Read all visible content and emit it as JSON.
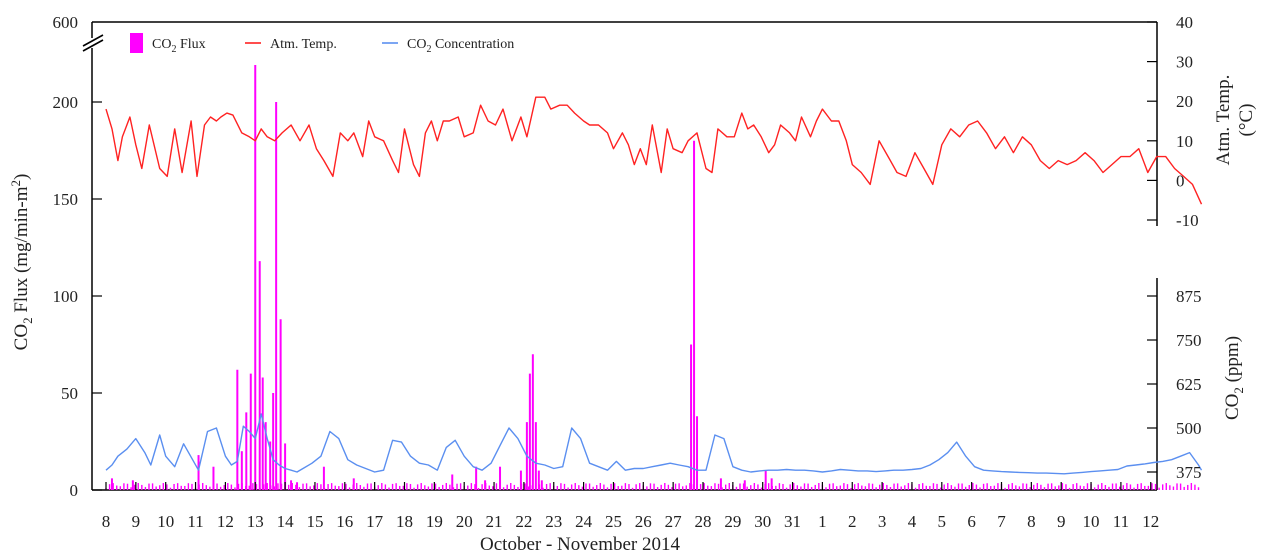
{
  "chart_data": {
    "type": "line",
    "title": "",
    "xlabel": "October - November 2014",
    "x_tick_labels": [
      "8",
      "9",
      "10",
      "11",
      "12",
      "13",
      "14",
      "15",
      "16",
      "17",
      "18",
      "19",
      "20",
      "21",
      "22",
      "23",
      "24",
      "25",
      "26",
      "27",
      "28",
      "29",
      "30",
      "31",
      "1",
      "2",
      "3",
      "4",
      "5",
      "6",
      "7",
      "8",
      "9",
      "10",
      "11",
      "12"
    ],
    "y_left": {
      "label_main": "CO",
      "label_sub": "2",
      "label_rest": " Flux (mg/min-m",
      "label_sup": "2",
      "label_end": ")",
      "range": [
        0,
        200
      ],
      "broken_top_label": "600",
      "ticks": [
        0,
        50,
        100,
        150,
        200
      ]
    },
    "y_right_temp": {
      "label_line1": "Atm. Temp.",
      "label_line2": "(°C)",
      "range": [
        -10,
        40
      ],
      "ticks": [
        -10,
        0,
        10,
        20,
        30,
        40
      ]
    },
    "y_right_co2": {
      "label_main": "CO",
      "label_sub": "2",
      "label_rest": " (ppm)",
      "range": [
        325,
        875
      ],
      "ticks": [
        375,
        500,
        625,
        750,
        875
      ]
    },
    "legend": [
      {
        "main": "CO",
        "sub": "2",
        "rest": " Flux",
        "color": "#ff00ff"
      },
      {
        "main": "Atm. Temp.",
        "sub": "",
        "rest": "",
        "color": "#ff2222"
      },
      {
        "main": "CO",
        "sub": "2",
        "rest": " Concentration",
        "color": "#5b8ff0"
      }
    ],
    "series": [
      {
        "name": "Atm. Temp.",
        "axis": "temp",
        "color": "#ff2222",
        "day": [
          0.0,
          0.2,
          0.4,
          0.55,
          0.8,
          1.0,
          1.2,
          1.45,
          1.8,
          2.05,
          2.3,
          2.55,
          2.85,
          3.05,
          3.3,
          3.5,
          3.7,
          3.85,
          4.05,
          4.25,
          4.55,
          4.8,
          5.0,
          5.2,
          5.4,
          5.65,
          5.9,
          6.2,
          6.5,
          6.8,
          7.05,
          7.3,
          7.6,
          7.85,
          8.1,
          8.3,
          8.6,
          8.8,
          9.0,
          9.3,
          9.6,
          9.8,
          10.0,
          10.3,
          10.5,
          10.7,
          10.9,
          11.1,
          11.3,
          11.5,
          11.8,
          12.0,
          12.3,
          12.55,
          12.8,
          13.05,
          13.3,
          13.6,
          13.9,
          14.1,
          14.4,
          14.7,
          14.9,
          15.2,
          15.45,
          15.7,
          16.0,
          16.2,
          16.5,
          16.8,
          17.0,
          17.3,
          17.5,
          17.7,
          17.9,
          18.1,
          18.3,
          18.6,
          18.8,
          19.0,
          19.3,
          19.5,
          19.8,
          20.1,
          20.3,
          20.5,
          20.8,
          21.05,
          21.3,
          21.5,
          21.7,
          21.95,
          22.2,
          22.4,
          22.6,
          22.9,
          23.1,
          23.3,
          23.6,
          23.8,
          24.0,
          24.3,
          24.55,
          24.8,
          25.0,
          25.3,
          25.6,
          25.9,
          26.2,
          26.5,
          26.8,
          27.1,
          27.4,
          27.7,
          28.0,
          28.3,
          28.6,
          28.9,
          29.2,
          29.5,
          29.8,
          30.1,
          30.4,
          30.7,
          31.0,
          31.3,
          31.6,
          31.9,
          32.2,
          32.5,
          32.8,
          33.1,
          33.4,
          33.7,
          34.0,
          34.3,
          34.6,
          34.9,
          35.2,
          35.5,
          35.8,
          36.1,
          36.4,
          36.7
        ],
        "values": [
          18.0,
          13.0,
          5.0,
          11.0,
          16.0,
          9.0,
          3.0,
          14.0,
          3.0,
          1.0,
          13.0,
          2.0,
          15.0,
          1.0,
          14.0,
          16.0,
          15.0,
          16.0,
          17.0,
          16.5,
          12.0,
          11.0,
          10.0,
          13.0,
          11.0,
          10.0,
          12.0,
          14.0,
          10.0,
          14.0,
          8.0,
          5.0,
          1.0,
          12.0,
          10.0,
          12.0,
          6.0,
          15.0,
          11.0,
          10.0,
          5.0,
          2.0,
          13.0,
          4.0,
          1.0,
          12.0,
          15.0,
          10.0,
          15.0,
          15.0,
          16.0,
          11.0,
          12.0,
          19.0,
          15.0,
          14.0,
          18.0,
          10.0,
          16.0,
          11.0,
          21.0,
          21.0,
          18.0,
          19.0,
          19.0,
          17.0,
          15.0,
          14.0,
          14.0,
          12.0,
          8.0,
          12.0,
          9.0,
          4.0,
          8.0,
          4.0,
          14.0,
          2.0,
          13.0,
          8.0,
          7.0,
          10.0,
          12.0,
          3.0,
          2.0,
          13.0,
          11.0,
          11.0,
          17.0,
          13.0,
          14.0,
          11.0,
          7.0,
          9.0,
          14.0,
          12.0,
          10.0,
          16.0,
          11.0,
          15.0,
          18.0,
          15.0,
          15.0,
          10.0,
          4.0,
          2.0,
          -1.0,
          10.0,
          6.0,
          2.0,
          1.0,
          7.0,
          3.0,
          -1.0,
          9.0,
          13.0,
          11.0,
          14.0,
          15.0,
          12.0,
          8.0,
          11.0,
          7.0,
          11.0,
          9.0,
          5.0,
          3.0,
          5.0,
          4.0,
          5.0,
          7.0,
          5.0,
          2.0,
          4.0,
          6.0,
          6.0,
          8.0,
          2.0,
          6.0,
          6.0,
          3.0,
          1.0,
          -1.0,
          -6.0
        ]
      },
      {
        "name": "CO2 Concentration",
        "axis": "co2",
        "color": "#5b8ff0",
        "day": [
          0.0,
          0.2,
          0.4,
          0.7,
          1.0,
          1.3,
          1.5,
          1.8,
          2.0,
          2.3,
          2.6,
          2.9,
          3.1,
          3.4,
          3.7,
          4.0,
          4.2,
          4.4,
          4.6,
          4.8,
          5.0,
          5.2,
          5.4,
          5.6,
          5.8,
          6.0,
          6.2,
          6.4,
          6.6,
          6.9,
          7.2,
          7.5,
          7.8,
          8.1,
          8.4,
          8.7,
          9.0,
          9.3,
          9.6,
          9.9,
          10.2,
          10.5,
          10.8,
          11.1,
          11.4,
          11.7,
          12.0,
          12.3,
          12.6,
          12.9,
          13.2,
          13.5,
          13.8,
          14.1,
          14.4,
          14.7,
          15.0,
          15.3,
          15.6,
          15.9,
          16.2,
          16.5,
          16.8,
          17.1,
          17.4,
          17.7,
          18.0,
          18.3,
          18.6,
          18.9,
          19.2,
          19.5,
          19.8,
          20.1,
          20.4,
          20.7,
          21.0,
          21.3,
          21.6,
          21.9,
          22.2,
          22.5,
          22.8,
          23.1,
          23.4,
          23.7,
          24.0,
          24.3,
          24.6,
          24.9,
          25.2,
          25.5,
          25.8,
          26.1,
          26.4,
          26.7,
          27.0,
          27.3,
          27.6,
          27.9,
          28.2,
          28.5,
          28.8,
          29.1,
          29.4,
          29.7,
          30.0,
          30.3,
          30.6,
          30.9,
          31.2,
          31.5,
          31.8,
          32.1,
          32.4,
          32.7,
          33.0,
          33.3,
          33.6,
          33.9,
          34.2,
          34.5,
          34.8,
          35.1,
          35.4,
          35.7,
          36.0,
          36.3,
          36.6,
          36.7
        ],
        "values": [
          380,
          395,
          420,
          440,
          470,
          430,
          395,
          480,
          420,
          390,
          455,
          410,
          380,
          490,
          500,
          420,
          395,
          405,
          505,
          490,
          470,
          540,
          470,
          410,
          395,
          385,
          380,
          375,
          385,
          400,
          420,
          490,
          470,
          410,
          395,
          385,
          375,
          380,
          465,
          460,
          420,
          400,
          395,
          380,
          445,
          465,
          420,
          390,
          380,
          400,
          450,
          500,
          470,
          420,
          400,
          395,
          385,
          390,
          500,
          470,
          400,
          390,
          380,
          405,
          380,
          385,
          385,
          390,
          395,
          400,
          395,
          390,
          380,
          380,
          480,
          470,
          390,
          380,
          375,
          378,
          380,
          380,
          382,
          380,
          380,
          378,
          375,
          378,
          382,
          380,
          378,
          378,
          376,
          378,
          380,
          380,
          382,
          385,
          395,
          410,
          430,
          460,
          420,
          390,
          380,
          378,
          376,
          375,
          374,
          373,
          372,
          372,
          371,
          370,
          372,
          374,
          376,
          378,
          380,
          382,
          392,
          395,
          398,
          402,
          405,
          410,
          420,
          430,
          395,
          380
        ]
      },
      {
        "name": "CO2 Flux",
        "axis": "flux",
        "color": "#ff00ff",
        "spikes_day": [
          0.2,
          0.9,
          3.1,
          3.6,
          4.4,
          4.55,
          4.7,
          4.85,
          5.0,
          5.15,
          5.25,
          5.35,
          5.5,
          5.6,
          5.7,
          5.85,
          6.0,
          6.2,
          6.4,
          7.3,
          8.3,
          11.6,
          12.4,
          12.7,
          13.2,
          13.9,
          14.1,
          14.2,
          14.3,
          14.4,
          14.5,
          14.6,
          19.6,
          19.7,
          19.8,
          20.6,
          21.4,
          22.1,
          22.3
        ],
        "spikes_value": [
          6,
          5,
          18,
          12,
          62,
          20,
          40,
          60,
          290,
          118,
          58,
          35,
          25,
          50,
          200,
          88,
          24,
          5,
          4,
          12,
          6,
          8,
          12,
          5,
          12,
          10,
          35,
          60,
          70,
          35,
          10,
          5,
          75,
          180,
          38,
          6,
          5,
          10,
          6
        ]
      }
    ]
  }
}
